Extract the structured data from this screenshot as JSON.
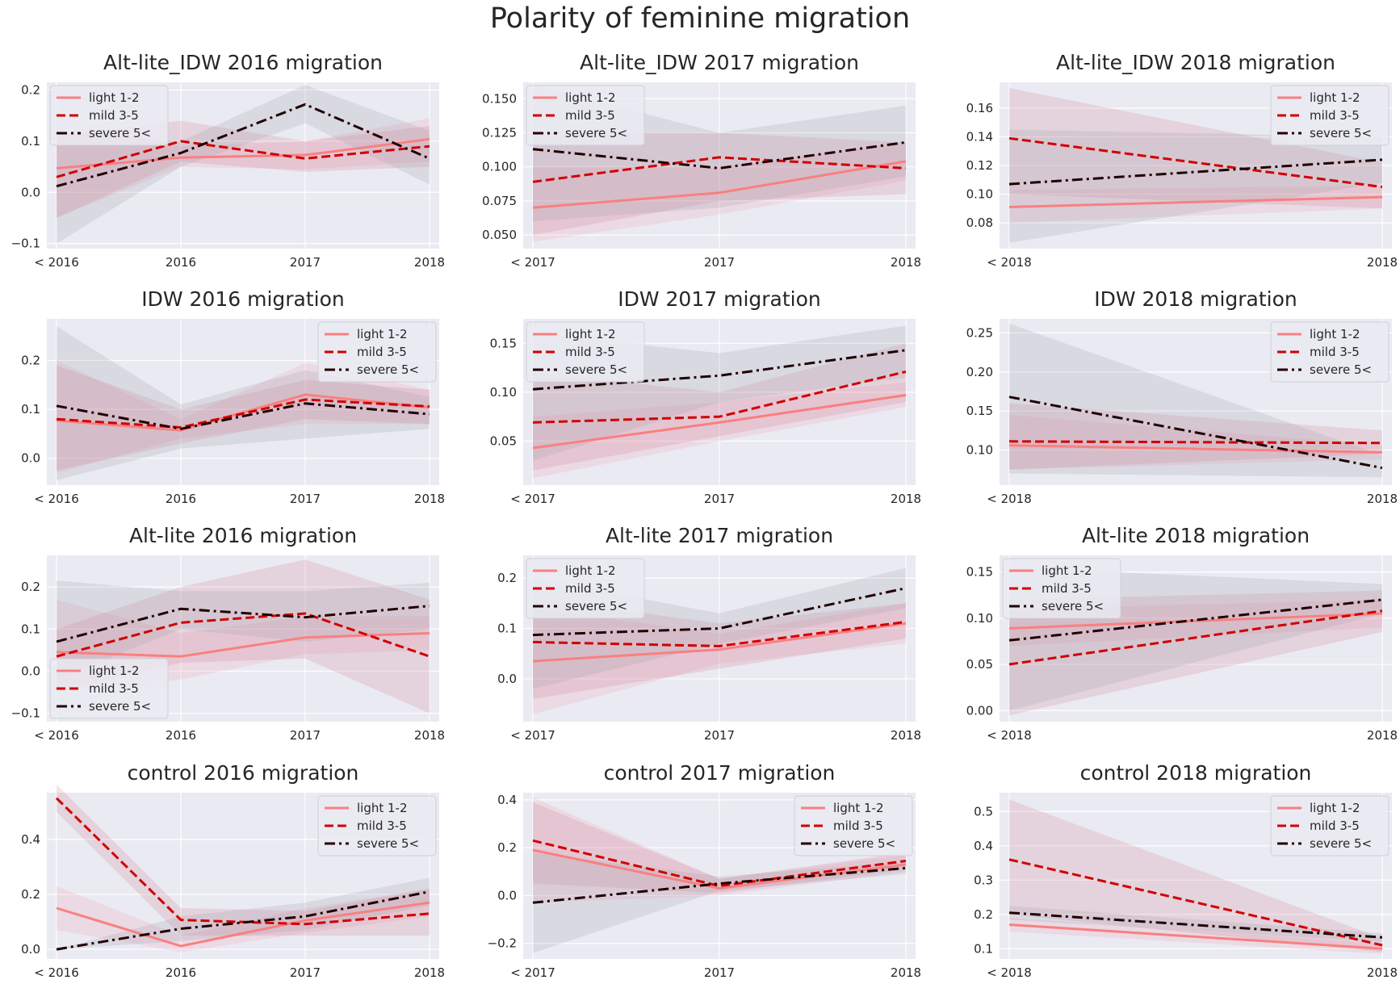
{
  "figure": {
    "title": "Polarity of feminine migration"
  },
  "colors": {
    "plot_bg": "#eaeaf2",
    "grid": "#ffffff",
    "light": "#f88080",
    "mild": "#d10000",
    "severe": "#200000",
    "band_light": "#f0a0b0",
    "band_mild": "#d08090",
    "band_severe": "#a0a0a8"
  },
  "chart_data": [
    {
      "type": "line",
      "title": "Alt-lite_IDW 2016 migration",
      "categories": [
        "< 2016",
        "2016",
        "2017",
        "2018"
      ],
      "ylim": [
        -0.11,
        0.215
      ],
      "yticks": [
        -0.1,
        0.0,
        0.1,
        0.2
      ],
      "ytick_labels": [
        "−0.1",
        "0.0",
        "0.1",
        "0.2"
      ],
      "legend": "top-left",
      "series": [
        {
          "name": "light 1-2",
          "style": "solid",
          "values": [
            0.047,
            0.068,
            0.073,
            0.104
          ],
          "lower": [
            -0.05,
            0.05,
            0.045,
            0.06
          ],
          "upper": [
            0.14,
            0.09,
            0.1,
            0.145
          ]
        },
        {
          "name": "mild 3-5",
          "style": "dashed",
          "values": [
            0.03,
            0.1,
            0.066,
            0.09
          ],
          "lower": [
            -0.05,
            0.06,
            0.04,
            0.05
          ],
          "upper": [
            0.11,
            0.14,
            0.1,
            0.13
          ]
        },
        {
          "name": "severe 5<",
          "style": "dashdot",
          "values": [
            0.012,
            0.077,
            0.172,
            0.066
          ],
          "lower": [
            -0.1,
            0.05,
            0.135,
            0.015
          ],
          "upper": [
            0.12,
            0.1,
            0.21,
            0.12
          ]
        }
      ]
    },
    {
      "type": "line",
      "title": "Alt-lite_IDW 2017 migration",
      "categories": [
        "< 2017",
        "2017",
        "2018"
      ],
      "ylim": [
        0.04,
        0.162
      ],
      "yticks": [
        0.05,
        0.075,
        0.1,
        0.125,
        0.15
      ],
      "ytick_labels": [
        "0.050",
        "0.075",
        "0.100",
        "0.125",
        "0.150"
      ],
      "legend": "top-left",
      "series": [
        {
          "name": "light 1-2",
          "style": "solid",
          "values": [
            0.07,
            0.081,
            0.104
          ],
          "lower": [
            0.045,
            0.065,
            0.09
          ],
          "upper": [
            0.1,
            0.1,
            0.118
          ]
        },
        {
          "name": "mild 3-5",
          "style": "dashed",
          "values": [
            0.089,
            0.107,
            0.099
          ],
          "lower": [
            0.05,
            0.075,
            0.08
          ],
          "upper": [
            0.125,
            0.125,
            0.118
          ]
        },
        {
          "name": "severe 5<",
          "style": "dashdot",
          "values": [
            0.113,
            0.099,
            0.118
          ],
          "lower": [
            0.06,
            0.07,
            0.093
          ],
          "upper": [
            0.16,
            0.125,
            0.145
          ]
        }
      ]
    },
    {
      "type": "line",
      "title": "Alt-lite_IDW 2018 migration",
      "categories": [
        "< 2018",
        "2018"
      ],
      "ylim": [
        0.062,
        0.178
      ],
      "yticks": [
        0.08,
        0.1,
        0.12,
        0.14,
        0.16
      ],
      "ytick_labels": [
        "0.08",
        "0.10",
        "0.12",
        "0.14",
        "0.16"
      ],
      "legend": "top-right",
      "series": [
        {
          "name": "light 1-2",
          "style": "solid",
          "values": [
            0.091,
            0.098
          ],
          "lower": [
            0.08,
            0.09
          ],
          "upper": [
            0.103,
            0.106
          ]
        },
        {
          "name": "mild 3-5",
          "style": "dashed",
          "values": [
            0.139,
            0.105
          ],
          "lower": [
            0.1,
            0.09
          ],
          "upper": [
            0.174,
            0.122
          ]
        },
        {
          "name": "severe 5<",
          "style": "dashdot",
          "values": [
            0.107,
            0.124
          ],
          "lower": [
            0.066,
            0.108
          ],
          "upper": [
            0.145,
            0.14
          ]
        }
      ]
    },
    {
      "type": "line",
      "title": "IDW 2016 migration",
      "categories": [
        "< 2016",
        "2016",
        "2017",
        "2018"
      ],
      "ylim": [
        -0.055,
        0.285
      ],
      "yticks": [
        0.0,
        0.1,
        0.2
      ],
      "ytick_labels": [
        "0.0",
        "0.1",
        "0.2"
      ],
      "legend": "top-right",
      "series": [
        {
          "name": "light 1-2",
          "style": "solid",
          "values": [
            0.077,
            0.057,
            0.13,
            0.104
          ],
          "lower": [
            -0.03,
            0.04,
            0.07,
            0.07
          ],
          "upper": [
            0.2,
            0.08,
            0.195,
            0.14
          ]
        },
        {
          "name": "mild 3-5",
          "style": "dashed",
          "values": [
            0.08,
            0.063,
            0.12,
            0.106
          ],
          "lower": [
            -0.025,
            0.03,
            0.08,
            0.07
          ],
          "upper": [
            0.19,
            0.1,
            0.16,
            0.14
          ]
        },
        {
          "name": "severe 5<",
          "style": "dashdot",
          "values": [
            0.107,
            0.06,
            0.112,
            0.09
          ],
          "lower": [
            -0.045,
            0.02,
            0.04,
            0.06
          ],
          "upper": [
            0.27,
            0.11,
            0.18,
            0.125
          ]
        }
      ]
    },
    {
      "type": "line",
      "title": "IDW 2017 migration",
      "categories": [
        "< 2017",
        "2017",
        "2018"
      ],
      "ylim": [
        0.005,
        0.175
      ],
      "yticks": [
        0.05,
        0.1,
        0.15
      ],
      "ytick_labels": [
        "0.05",
        "0.10",
        "0.15"
      ],
      "legend": "top-left",
      "series": [
        {
          "name": "light 1-2",
          "style": "solid",
          "values": [
            0.043,
            0.069,
            0.097
          ],
          "lower": [
            0.012,
            0.05,
            0.085
          ],
          "upper": [
            0.075,
            0.09,
            0.11
          ]
        },
        {
          "name": "mild 3-5",
          "style": "dashed",
          "values": [
            0.069,
            0.075,
            0.121
          ],
          "lower": [
            0.02,
            0.055,
            0.09
          ],
          "upper": [
            0.12,
            0.1,
            0.15
          ]
        },
        {
          "name": "severe 5<",
          "style": "dashdot",
          "values": [
            0.103,
            0.117,
            0.143
          ],
          "lower": [
            0.03,
            0.09,
            0.115
          ],
          "upper": [
            0.16,
            0.14,
            0.168
          ]
        }
      ]
    },
    {
      "type": "line",
      "title": "IDW 2018 migration",
      "categories": [
        "< 2018",
        "2018"
      ],
      "ylim": [
        0.055,
        0.268
      ],
      "yticks": [
        0.1,
        0.15,
        0.2,
        0.25
      ],
      "ytick_labels": [
        "0.10",
        "0.15",
        "0.20",
        "0.25"
      ],
      "legend": "top-right",
      "series": [
        {
          "name": "light 1-2",
          "style": "solid",
          "values": [
            0.106,
            0.097
          ],
          "lower": [
            0.075,
            0.088
          ],
          "upper": [
            0.145,
            0.106
          ]
        },
        {
          "name": "mild 3-5",
          "style": "dashed",
          "values": [
            0.111,
            0.109
          ],
          "lower": [
            0.075,
            0.095
          ],
          "upper": [
            0.16,
            0.125
          ]
        },
        {
          "name": "severe 5<",
          "style": "dashdot",
          "values": [
            0.168,
            0.077
          ],
          "lower": [
            0.07,
            0.065
          ],
          "upper": [
            0.262,
            0.093
          ]
        }
      ]
    },
    {
      "type": "line",
      "title": "Alt-lite 2016 migration",
      "categories": [
        "< 2016",
        "2016",
        "2017",
        "2018"
      ],
      "ylim": [
        -0.12,
        0.275
      ],
      "yticks": [
        -0.1,
        0.0,
        0.1,
        0.2
      ],
      "ytick_labels": [
        "−0.1",
        "0.0",
        "0.1",
        "0.2"
      ],
      "legend": "bottom-left",
      "series": [
        {
          "name": "light 1-2",
          "style": "solid",
          "values": [
            0.045,
            0.035,
            0.08,
            0.09
          ],
          "lower": [
            -0.05,
            -0.02,
            0.04,
            0.05
          ],
          "upper": [
            0.17,
            0.09,
            0.13,
            0.13
          ]
        },
        {
          "name": "mild 3-5",
          "style": "dashed",
          "values": [
            0.035,
            0.115,
            0.137,
            0.035
          ],
          "lower": [
            -0.05,
            0.02,
            0.03,
            -0.1
          ],
          "upper": [
            0.1,
            0.2,
            0.265,
            0.17
          ]
        },
        {
          "name": "severe 5<",
          "style": "dashdot",
          "values": [
            0.07,
            0.148,
            0.128,
            0.155
          ],
          "lower": [
            -0.02,
            0.1,
            0.07,
            0.1
          ],
          "upper": [
            0.215,
            0.19,
            0.19,
            0.21
          ]
        }
      ]
    },
    {
      "type": "line",
      "title": "Alt-lite 2017 migration",
      "categories": [
        "< 2017",
        "2017",
        "2018"
      ],
      "ylim": [
        -0.085,
        0.245
      ],
      "yticks": [
        0.0,
        0.1,
        0.2
      ],
      "ytick_labels": [
        "0.0",
        "0.1",
        "0.2"
      ],
      "legend": "top-left",
      "series": [
        {
          "name": "light 1-2",
          "style": "solid",
          "values": [
            0.035,
            0.058,
            0.11
          ],
          "lower": [
            -0.07,
            0.03,
            0.07
          ],
          "upper": [
            0.14,
            0.09,
            0.15
          ]
        },
        {
          "name": "mild 3-5",
          "style": "dashed",
          "values": [
            0.073,
            0.065,
            0.113
          ],
          "lower": [
            -0.04,
            0.02,
            0.08
          ],
          "upper": [
            0.16,
            0.11,
            0.15
          ]
        },
        {
          "name": "severe 5<",
          "style": "dashdot",
          "values": [
            0.087,
            0.1,
            0.18
          ],
          "lower": [
            -0.02,
            0.07,
            0.14
          ],
          "upper": [
            0.2,
            0.13,
            0.22
          ]
        }
      ]
    },
    {
      "type": "line",
      "title": "Alt-lite 2018 migration",
      "categories": [
        "< 2018",
        "2018"
      ],
      "ylim": [
        -0.012,
        0.168
      ],
      "yticks": [
        0.0,
        0.05,
        0.1,
        0.15
      ],
      "ytick_labels": [
        "0.00",
        "0.05",
        "0.10",
        "0.15"
      ],
      "legend": "top-left",
      "series": [
        {
          "name": "light 1-2",
          "style": "solid",
          "values": [
            0.089,
            0.105
          ],
          "lower": [
            0.07,
            0.09
          ],
          "upper": [
            0.11,
            0.12
          ]
        },
        {
          "name": "mild 3-5",
          "style": "dashed",
          "values": [
            0.05,
            0.108
          ],
          "lower": [
            -0.005,
            0.085
          ],
          "upper": [
            0.12,
            0.13
          ]
        },
        {
          "name": "severe 5<",
          "style": "dashdot",
          "values": [
            0.076,
            0.12
          ],
          "lower": [
            0.0,
            0.105
          ],
          "upper": [
            0.155,
            0.137
          ]
        }
      ]
    },
    {
      "type": "line",
      "title": "control 2016 migration",
      "categories": [
        "< 2016",
        "2016",
        "2017",
        "2018"
      ],
      "ylim": [
        -0.035,
        0.57
      ],
      "yticks": [
        0.0,
        0.2,
        0.4
      ],
      "ytick_labels": [
        "0.0",
        "0.2",
        "0.4"
      ],
      "legend": "top-right",
      "series": [
        {
          "name": "light 1-2",
          "style": "solid",
          "values": [
            0.15,
            0.012,
            0.105,
            0.17
          ],
          "lower": [
            0.07,
            -0.01,
            0.06,
            0.12
          ],
          "upper": [
            0.23,
            0.05,
            0.15,
            0.22
          ]
        },
        {
          "name": "mild 3-5",
          "style": "dashed",
          "values": [
            0.55,
            0.107,
            0.092,
            0.13
          ],
          "lower": [
            0.5,
            0.05,
            0.05,
            0.05
          ],
          "upper": [
            0.6,
            0.15,
            0.14,
            0.22
          ]
        },
        {
          "name": "severe 5<",
          "style": "dashdot",
          "values": [
            0.0,
            0.075,
            0.12,
            0.21
          ],
          "lower": [
            0.0,
            0.03,
            0.07,
            0.16
          ],
          "upper": [
            0.0,
            0.12,
            0.17,
            0.26
          ]
        }
      ]
    },
    {
      "type": "line",
      "title": "control 2017 migration",
      "categories": [
        "< 2017",
        "2017",
        "2018"
      ],
      "ylim": [
        -0.265,
        0.43
      ],
      "yticks": [
        -0.2,
        0.0,
        0.2,
        0.4
      ],
      "ytick_labels": [
        "−0.2",
        "0.0",
        "0.2",
        "0.4"
      ],
      "legend": "top-right",
      "series": [
        {
          "name": "light 1-2",
          "style": "solid",
          "values": [
            0.19,
            0.03,
            0.13
          ],
          "lower": [
            -0.03,
            0.0,
            0.1
          ],
          "upper": [
            0.41,
            0.07,
            0.17
          ]
        },
        {
          "name": "mild 3-5",
          "style": "dashed",
          "values": [
            0.23,
            0.04,
            0.145
          ],
          "lower": [
            0.05,
            0.01,
            0.11
          ],
          "upper": [
            0.39,
            0.07,
            0.18
          ]
        },
        {
          "name": "severe 5<",
          "style": "dashdot",
          "values": [
            -0.03,
            0.05,
            0.115
          ],
          "lower": [
            -0.24,
            0.02,
            0.09
          ],
          "upper": [
            0.18,
            0.08,
            0.14
          ]
        }
      ]
    },
    {
      "type": "line",
      "title": "control 2018 migration",
      "categories": [
        "< 2018",
        "2018"
      ],
      "ylim": [
        0.07,
        0.555
      ],
      "yticks": [
        0.1,
        0.2,
        0.3,
        0.4,
        0.5
      ],
      "ytick_labels": [
        "0.1",
        "0.2",
        "0.3",
        "0.4",
        "0.5"
      ],
      "legend": "top-right",
      "series": [
        {
          "name": "light 1-2",
          "style": "solid",
          "values": [
            0.17,
            0.1
          ],
          "lower": [
            0.15,
            0.085
          ],
          "upper": [
            0.19,
            0.115
          ]
        },
        {
          "name": "mild 3-5",
          "style": "dashed",
          "values": [
            0.36,
            0.11
          ],
          "lower": [
            0.2,
            0.09
          ],
          "upper": [
            0.535,
            0.13
          ]
        },
        {
          "name": "severe 5<",
          "style": "dashdot",
          "values": [
            0.205,
            0.133
          ],
          "lower": [
            0.185,
            0.12
          ],
          "upper": [
            0.225,
            0.145
          ]
        }
      ]
    }
  ]
}
